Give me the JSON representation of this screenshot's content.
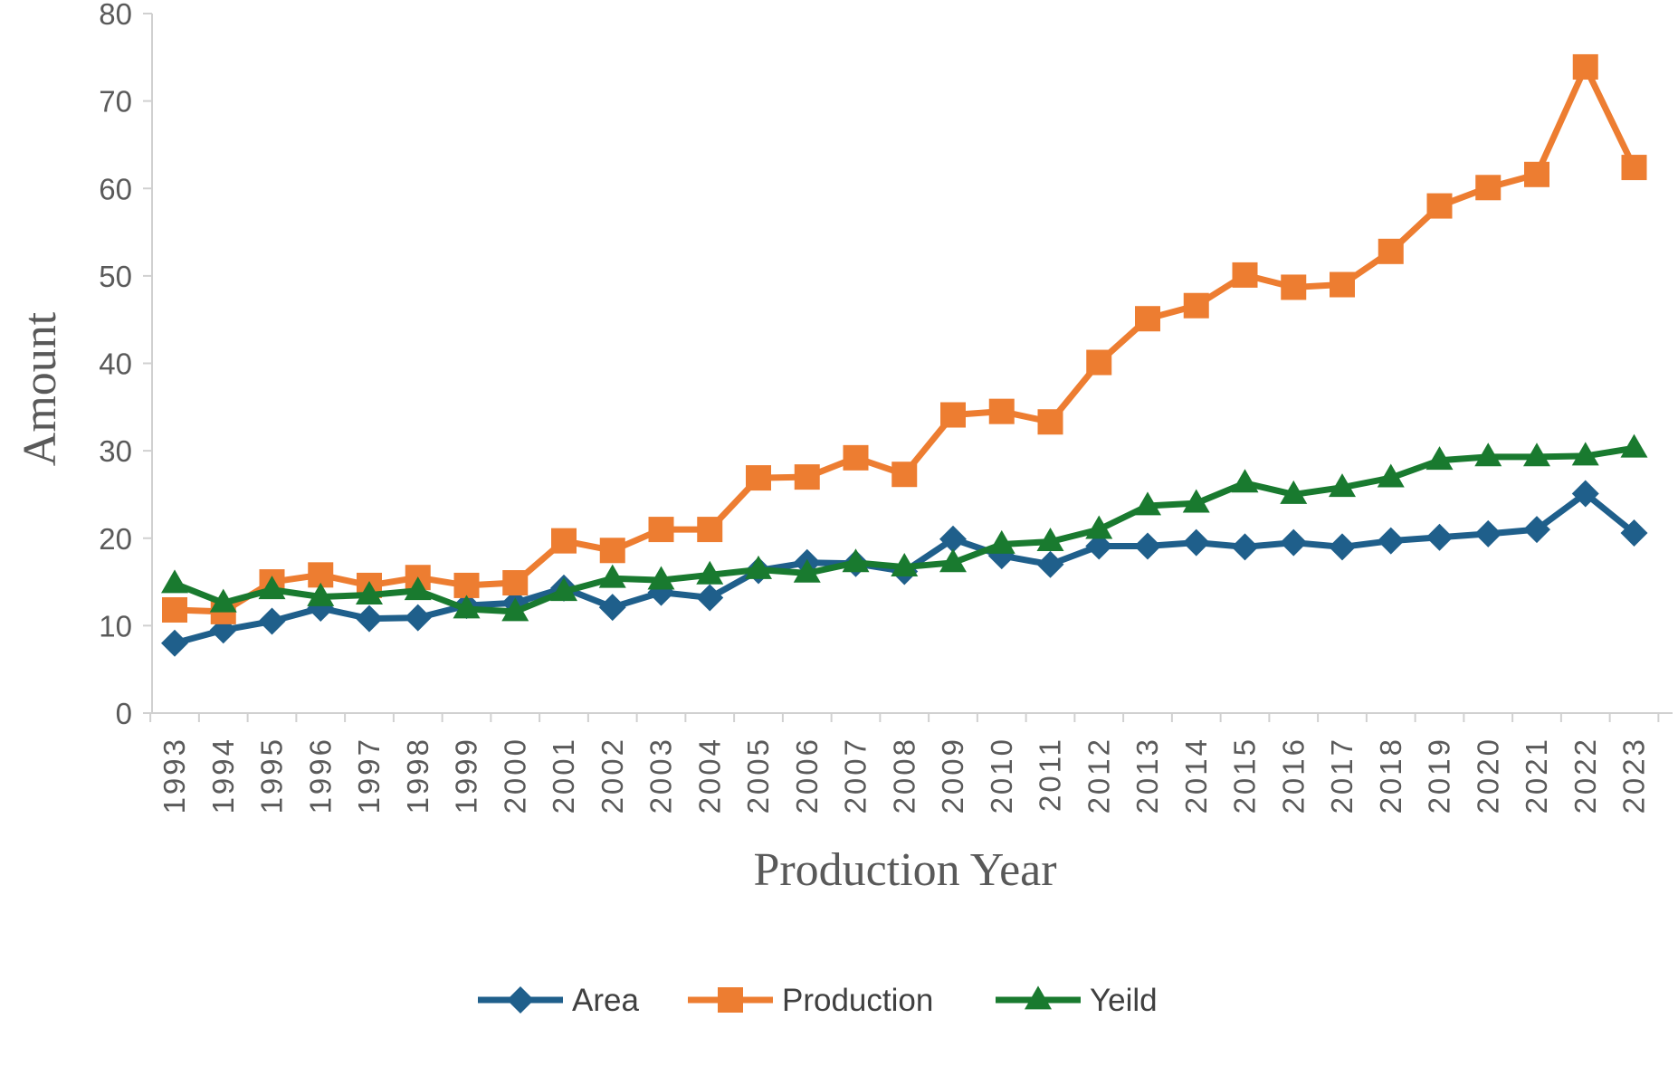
{
  "chart_data": {
    "type": "line",
    "xlabel": "Production Year",
    "ylabel": "Amount",
    "ylim": [
      0,
      80
    ],
    "yticks": [
      "0",
      "10",
      "20",
      "30",
      "40",
      "50",
      "60",
      "70",
      "80"
    ],
    "x": [
      "1993",
      "1994",
      "1995",
      "1996",
      "1997",
      "1998",
      "1999",
      "2000",
      "2001",
      "2002",
      "2003",
      "2004",
      "2005",
      "2006",
      "2007",
      "2008",
      "2009",
      "2010",
      "2011",
      "2012",
      "2013",
      "2014",
      "2015",
      "2016",
      "2017",
      "2018",
      "2019",
      "2020",
      "2021",
      "2022",
      "2023"
    ],
    "grid": false,
    "legend": "bottom",
    "series": [
      {
        "name": "Area",
        "color": "#1f5f8b",
        "marker": "diamond",
        "values": [
          8.0,
          9.5,
          10.5,
          12.0,
          10.8,
          10.9,
          12.3,
          12.6,
          14.3,
          12.1,
          13.8,
          13.2,
          16.3,
          17.2,
          17.1,
          16.2,
          19.9,
          18.0,
          17.0,
          19.1,
          19.1,
          19.5,
          19.0,
          19.5,
          19.0,
          19.7,
          20.1,
          20.5,
          21.0,
          25.1,
          20.6
        ]
      },
      {
        "name": "Production",
        "color": "#ed7d31",
        "marker": "square",
        "values": [
          11.8,
          11.6,
          15.0,
          15.8,
          14.6,
          15.5,
          14.6,
          14.9,
          19.7,
          18.6,
          21.0,
          21.0,
          26.9,
          27.0,
          29.2,
          27.3,
          34.1,
          34.5,
          33.3,
          40.1,
          45.1,
          46.6,
          50.1,
          48.7,
          49.0,
          52.8,
          58.0,
          60.1,
          61.6,
          73.9,
          62.4
        ]
      },
      {
        "name": "Yeild",
        "color": "#197a2f",
        "marker": "triangle",
        "values": [
          14.8,
          12.6,
          14.1,
          13.3,
          13.5,
          14.0,
          11.9,
          11.6,
          13.9,
          15.4,
          15.2,
          15.8,
          16.4,
          16.0,
          17.2,
          16.7,
          17.2,
          19.3,
          19.6,
          21.0,
          23.7,
          24.0,
          26.3,
          25.0,
          25.8,
          26.9,
          28.9,
          29.3,
          29.3,
          29.4,
          30.3
        ]
      }
    ]
  }
}
